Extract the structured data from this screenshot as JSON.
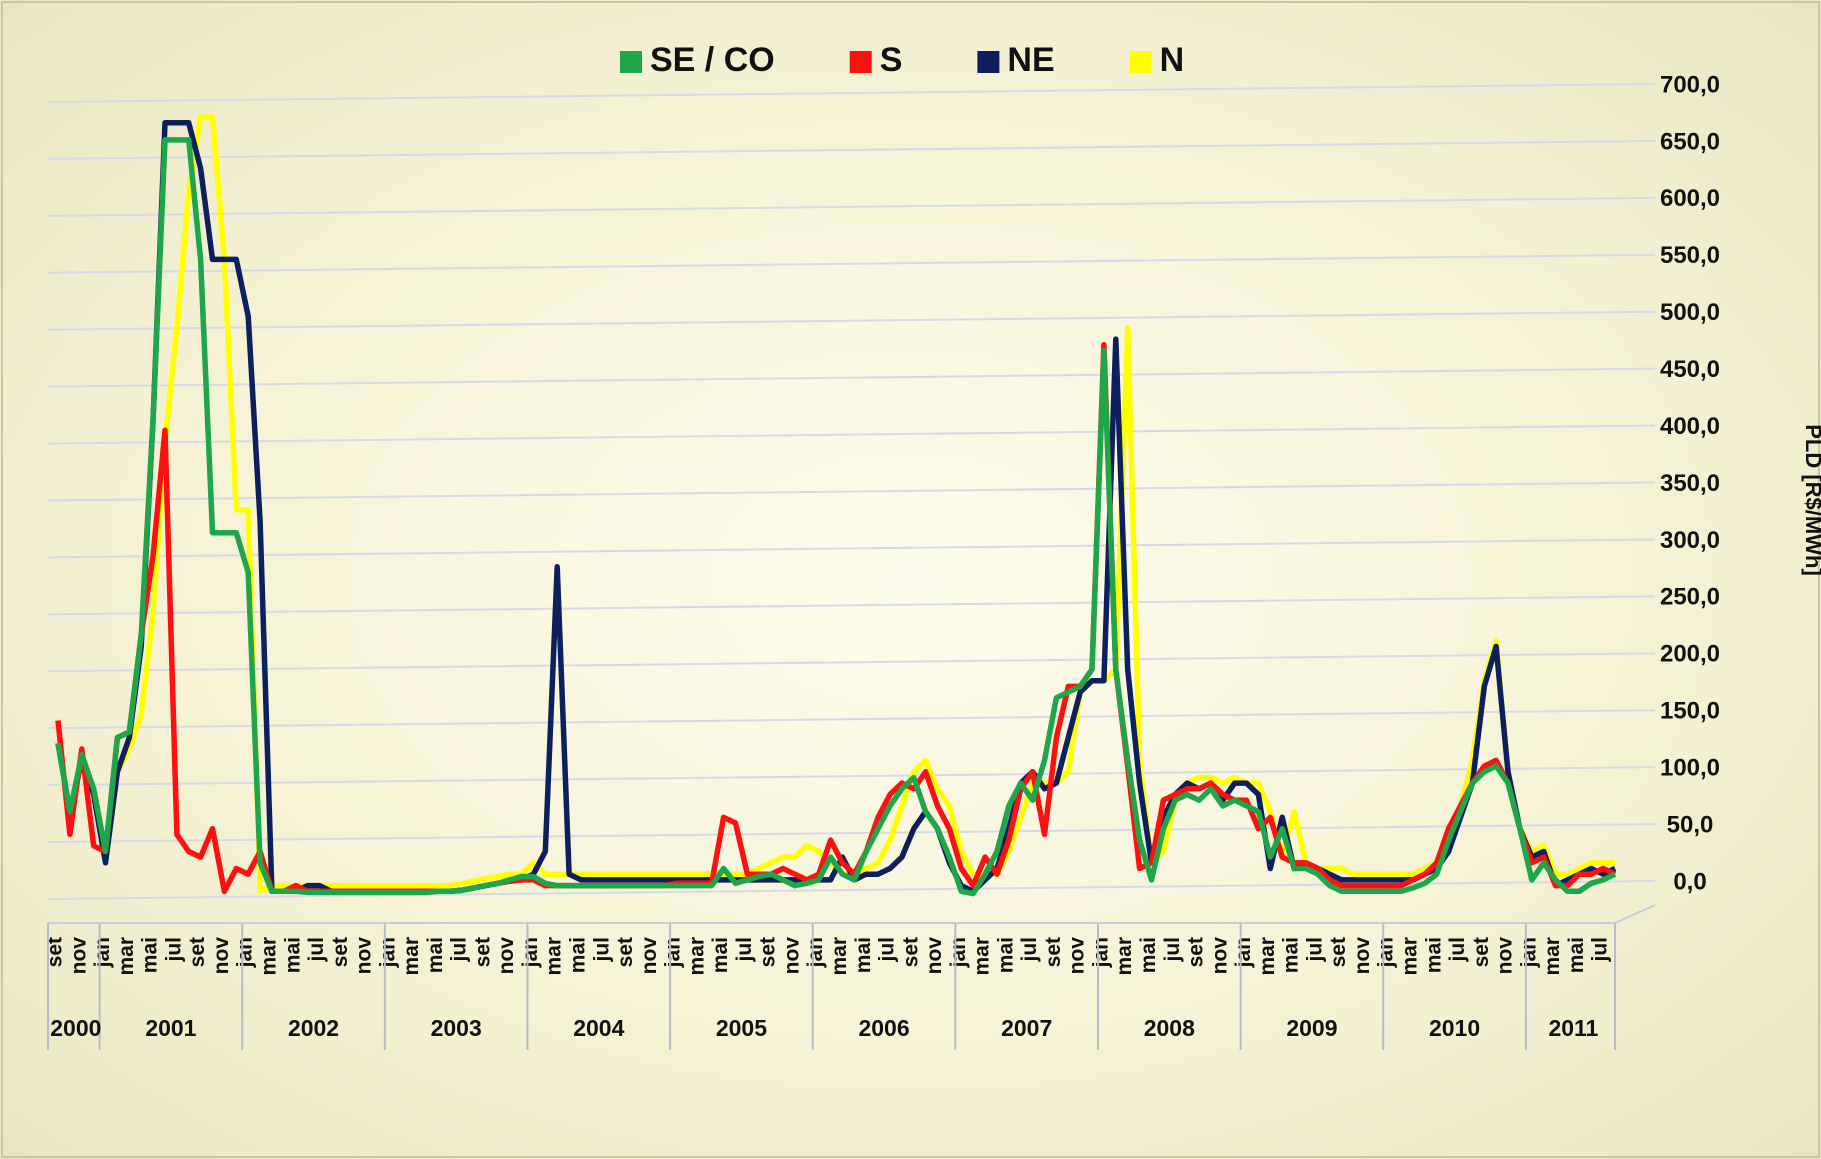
{
  "chart_data": {
    "type": "line",
    "categories": [
      "set",
      null,
      "nov",
      null,
      "jan",
      null,
      "mar",
      null,
      "mai",
      null,
      "jul",
      null,
      "set",
      null,
      "nov",
      null,
      "jan",
      null,
      "mar",
      null,
      "mai",
      null,
      "jul",
      null,
      "set",
      null,
      "nov",
      null,
      "jan",
      null,
      "mar",
      null,
      "mai",
      null,
      "jul",
      null,
      "set",
      null,
      "nov",
      null,
      "jan",
      null,
      "mar",
      null,
      "mai",
      null,
      "jul",
      null,
      "set",
      null,
      "nov",
      null,
      "jan",
      null,
      "mar",
      null,
      "mai",
      null,
      "jul",
      null,
      "set",
      null,
      "nov",
      null,
      "jan",
      null,
      "mar",
      null,
      "mai",
      null,
      "jul",
      null,
      "set",
      null,
      "nov",
      null,
      "jan",
      null,
      "mar",
      null,
      "mai",
      null,
      "jul",
      null,
      "set",
      null,
      "nov",
      null,
      "jan",
      null,
      "mar",
      null,
      "mai",
      null,
      "jul",
      null,
      "set",
      null,
      "nov",
      null,
      "jan",
      null,
      "mar",
      null,
      "mai",
      null,
      "jul",
      null,
      "set",
      null,
      "nov",
      null,
      "jan",
      null,
      "mar",
      null,
      "mai",
      null,
      "jul",
      null,
      "set",
      null,
      "nov",
      null,
      "jan",
      null,
      "mar",
      null,
      "mai",
      null,
      "jul",
      null
    ],
    "years": [
      "2000",
      "2001",
      "2002",
      "2003",
      "2004",
      "2005",
      "2006",
      "2007",
      "2008",
      "2009",
      "2010",
      "2011"
    ],
    "series": [
      {
        "name": "SE / CO",
        "color": "#1fa64a",
        "values": [
          135,
          75,
          125,
          95,
          40,
          140,
          145,
          230,
          420,
          665,
          665,
          665,
          560,
          320,
          320,
          320,
          285,
          30,
          5,
          5,
          5,
          4,
          4,
          4,
          4,
          4,
          4,
          4,
          4,
          4,
          4,
          4,
          5,
          5,
          6,
          8,
          10,
          12,
          15,
          18,
          18,
          12,
          10,
          10,
          10,
          10,
          10,
          10,
          10,
          10,
          10,
          10,
          10,
          10,
          10,
          10,
          25,
          12,
          15,
          18,
          20,
          15,
          10,
          12,
          15,
          35,
          20,
          15,
          40,
          60,
          80,
          95,
          105,
          75,
          60,
          35,
          5,
          3,
          20,
          40,
          80,
          100,
          85,
          120,
          175,
          180,
          185,
          200,
          480,
          200,
          120,
          50,
          15,
          60,
          85,
          90,
          85,
          95,
          80,
          85,
          80,
          75,
          35,
          60,
          25,
          25,
          20,
          10,
          5,
          5,
          5,
          5,
          5,
          5,
          8,
          12,
          20,
          50,
          75,
          100,
          110,
          115,
          100,
          60,
          15,
          30,
          15,
          5,
          5,
          12,
          15,
          20
        ]
      },
      {
        "name": "S",
        "color": "#ff1010",
        "values": [
          155,
          55,
          130,
          45,
          40,
          140,
          145,
          230,
          300,
          410,
          55,
          40,
          35,
          60,
          5,
          25,
          20,
          40,
          5,
          5,
          10,
          5,
          5,
          5,
          5,
          5,
          5,
          5,
          5,
          5,
          5,
          5,
          5,
          5,
          6,
          8,
          10,
          12,
          14,
          15,
          15,
          10,
          10,
          10,
          10,
          10,
          10,
          10,
          10,
          10,
          10,
          10,
          12,
          12,
          12,
          12,
          70,
          65,
          20,
          20,
          20,
          25,
          20,
          15,
          20,
          50,
          30,
          20,
          40,
          70,
          90,
          100,
          95,
          110,
          80,
          60,
          25,
          10,
          35,
          20,
          50,
          95,
          110,
          55,
          140,
          185,
          185,
          200,
          485,
          200,
          115,
          25,
          30,
          85,
          90,
          95,
          95,
          100,
          90,
          85,
          85,
          60,
          70,
          35,
          30,
          30,
          25,
          15,
          10,
          10,
          10,
          10,
          10,
          10,
          15,
          20,
          30,
          60,
          80,
          100,
          115,
          120,
          100,
          60,
          30,
          35,
          10,
          10,
          20,
          20,
          25,
          20
        ]
      },
      {
        "name": "NE",
        "color": "#0d1f5c",
        "values": [
          135,
          75,
          120,
          90,
          30,
          110,
          140,
          220,
          420,
          680,
          680,
          680,
          640,
          560,
          560,
          560,
          510,
          330,
          5,
          5,
          5,
          10,
          10,
          5,
          5,
          5,
          5,
          5,
          5,
          5,
          5,
          5,
          5,
          5,
          6,
          8,
          10,
          12,
          14,
          15,
          20,
          40,
          290,
          20,
          15,
          15,
          15,
          15,
          15,
          15,
          15,
          15,
          15,
          15,
          15,
          15,
          15,
          15,
          15,
          15,
          15,
          15,
          15,
          15,
          15,
          15,
          35,
          15,
          20,
          20,
          25,
          35,
          60,
          75,
          60,
          30,
          10,
          5,
          15,
          25,
          60,
          100,
          110,
          95,
          100,
          140,
          180,
          190,
          190,
          490,
          200,
          100,
          30,
          70,
          90,
          100,
          95,
          100,
          85,
          100,
          100,
          90,
          25,
          70,
          25,
          30,
          25,
          20,
          15,
          15,
          15,
          15,
          15,
          15,
          15,
          20,
          25,
          40,
          70,
          100,
          185,
          220,
          110,
          60,
          35,
          40,
          10,
          15,
          20,
          25,
          20,
          25
        ]
      },
      {
        "name": "N",
        "color": "#ffff00",
        "values": [
          135,
          75,
          120,
          90,
          40,
          110,
          130,
          160,
          250,
          400,
          500,
          620,
          685,
          685,
          560,
          340,
          340,
          5,
          10,
          10,
          10,
          10,
          10,
          10,
          10,
          10,
          10,
          10,
          10,
          10,
          10,
          10,
          10,
          10,
          12,
          14,
          16,
          18,
          20,
          20,
          30,
          20,
          20,
          20,
          20,
          20,
          20,
          20,
          20,
          20,
          20,
          20,
          20,
          20,
          20,
          20,
          20,
          20,
          20,
          25,
          30,
          35,
          35,
          45,
          40,
          30,
          20,
          20,
          25,
          30,
          50,
          80,
          110,
          120,
          95,
          80,
          40,
          20,
          20,
          20,
          40,
          70,
          100,
          100,
          100,
          110,
          180,
          190,
          190,
          200,
          500,
          120,
          30,
          40,
          85,
          100,
          105,
          105,
          100,
          105,
          100,
          100,
          75,
          35,
          75,
          30,
          25,
          25,
          25,
          20,
          20,
          20,
          20,
          20,
          20,
          25,
          30,
          50,
          80,
          120,
          190,
          225,
          110,
          60,
          40,
          45,
          20,
          20,
          25,
          30,
          30,
          30
        ]
      }
    ],
    "y_label": "PLD [R$/MWh]",
    "ylim": [
      0,
      700
    ],
    "yticks": [
      {
        "value": 0,
        "label": "0,0"
      },
      {
        "value": 50,
        "label": "50,0"
      },
      {
        "value": 100,
        "label": "100,0"
      },
      {
        "value": 150,
        "label": "150,0"
      },
      {
        "value": 200,
        "label": "200,0"
      },
      {
        "value": 250,
        "label": "250,0"
      },
      {
        "value": 300,
        "label": "300,0"
      },
      {
        "value": 350,
        "label": "350,0"
      },
      {
        "value": 400,
        "label": "400,0"
      },
      {
        "value": 450,
        "label": "450,0"
      },
      {
        "value": 500,
        "label": "500,0"
      },
      {
        "value": 550,
        "label": "550,0"
      },
      {
        "value": 600,
        "label": "600,0"
      },
      {
        "value": 650,
        "label": "650,0"
      },
      {
        "value": 700,
        "label": "700,0"
      }
    ],
    "grid": true,
    "legend": "top"
  }
}
